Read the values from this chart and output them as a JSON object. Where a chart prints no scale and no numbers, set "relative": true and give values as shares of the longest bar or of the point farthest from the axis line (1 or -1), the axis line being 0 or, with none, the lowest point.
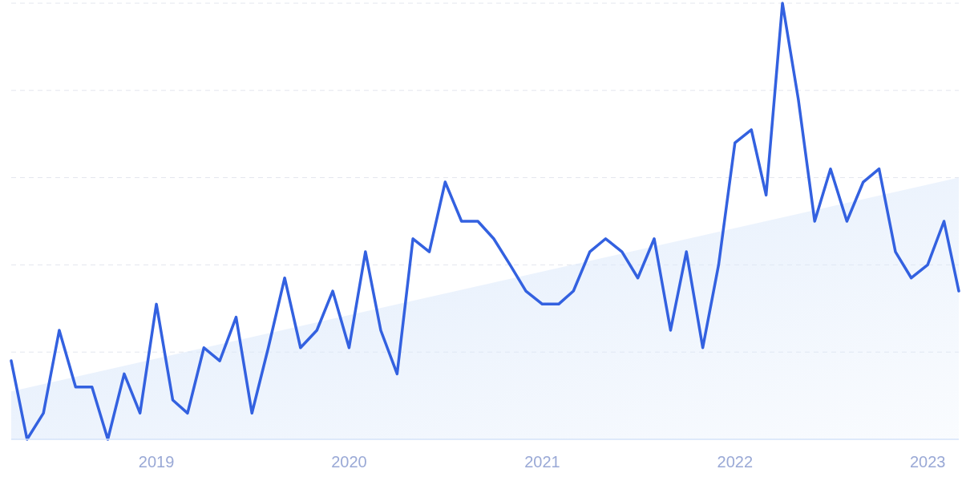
{
  "chart_data": {
    "type": "line",
    "relative": true,
    "grid": "y",
    "xlim": [
      "2018-04",
      "2023-03"
    ],
    "xticks": [
      "2019",
      "2020",
      "2021",
      "2022",
      "2023"
    ],
    "x": [
      "2018-04",
      "2018-05",
      "2018-06",
      "2018-07",
      "2018-08",
      "2018-09",
      "2018-10",
      "2018-11",
      "2018-12",
      "2019-01",
      "2019-02",
      "2019-03",
      "2019-04",
      "2019-05",
      "2019-06",
      "2019-07",
      "2019-08",
      "2019-09",
      "2019-10",
      "2019-11",
      "2019-12",
      "2020-01",
      "2020-02",
      "2020-03",
      "2020-04",
      "2020-05",
      "2020-06",
      "2020-07",
      "2020-08",
      "2020-09",
      "2020-10",
      "2020-11",
      "2020-12",
      "2021-01",
      "2021-02",
      "2021-03",
      "2021-04",
      "2021-05",
      "2021-06",
      "2021-07",
      "2021-08",
      "2021-09",
      "2021-10",
      "2021-11",
      "2021-12",
      "2022-01",
      "2022-02",
      "2022-03",
      "2022-04",
      "2022-05",
      "2022-06",
      "2022-07",
      "2022-08",
      "2022-09",
      "2022-10",
      "2022-11",
      "2022-12",
      "2023-01",
      "2023-02",
      "2023-03"
    ],
    "series": [
      {
        "type": "area",
        "color": "#dce9fb",
        "x": [
          "2018-04",
          "2023-03"
        ],
        "values": [
          0.11,
          0.6
        ]
      },
      {
        "type": "line",
        "color": "#3361e0",
        "values": [
          0.18,
          0,
          0.06,
          0.25,
          0.12,
          0.12,
          0,
          0.15,
          0.06,
          0.31,
          0.09,
          0.06,
          0.21,
          0.18,
          0.28,
          0.06,
          0.21,
          0.37,
          0.21,
          0.25,
          0.34,
          0.21,
          0.43,
          0.25,
          0.15,
          0.46,
          0.43,
          0.59,
          0.5,
          0.5,
          0.46,
          0.4,
          0.34,
          0.31,
          0.31,
          0.34,
          0.43,
          0.46,
          0.43,
          0.37,
          0.46,
          0.25,
          0.43,
          0.21,
          0.4,
          0.68,
          0.71,
          0.56,
          1,
          0.78,
          0.5,
          0.62,
          0.5,
          0.59,
          0.62,
          0.43,
          0.37,
          0.4,
          0.5,
          0.34
        ]
      }
    ]
  }
}
